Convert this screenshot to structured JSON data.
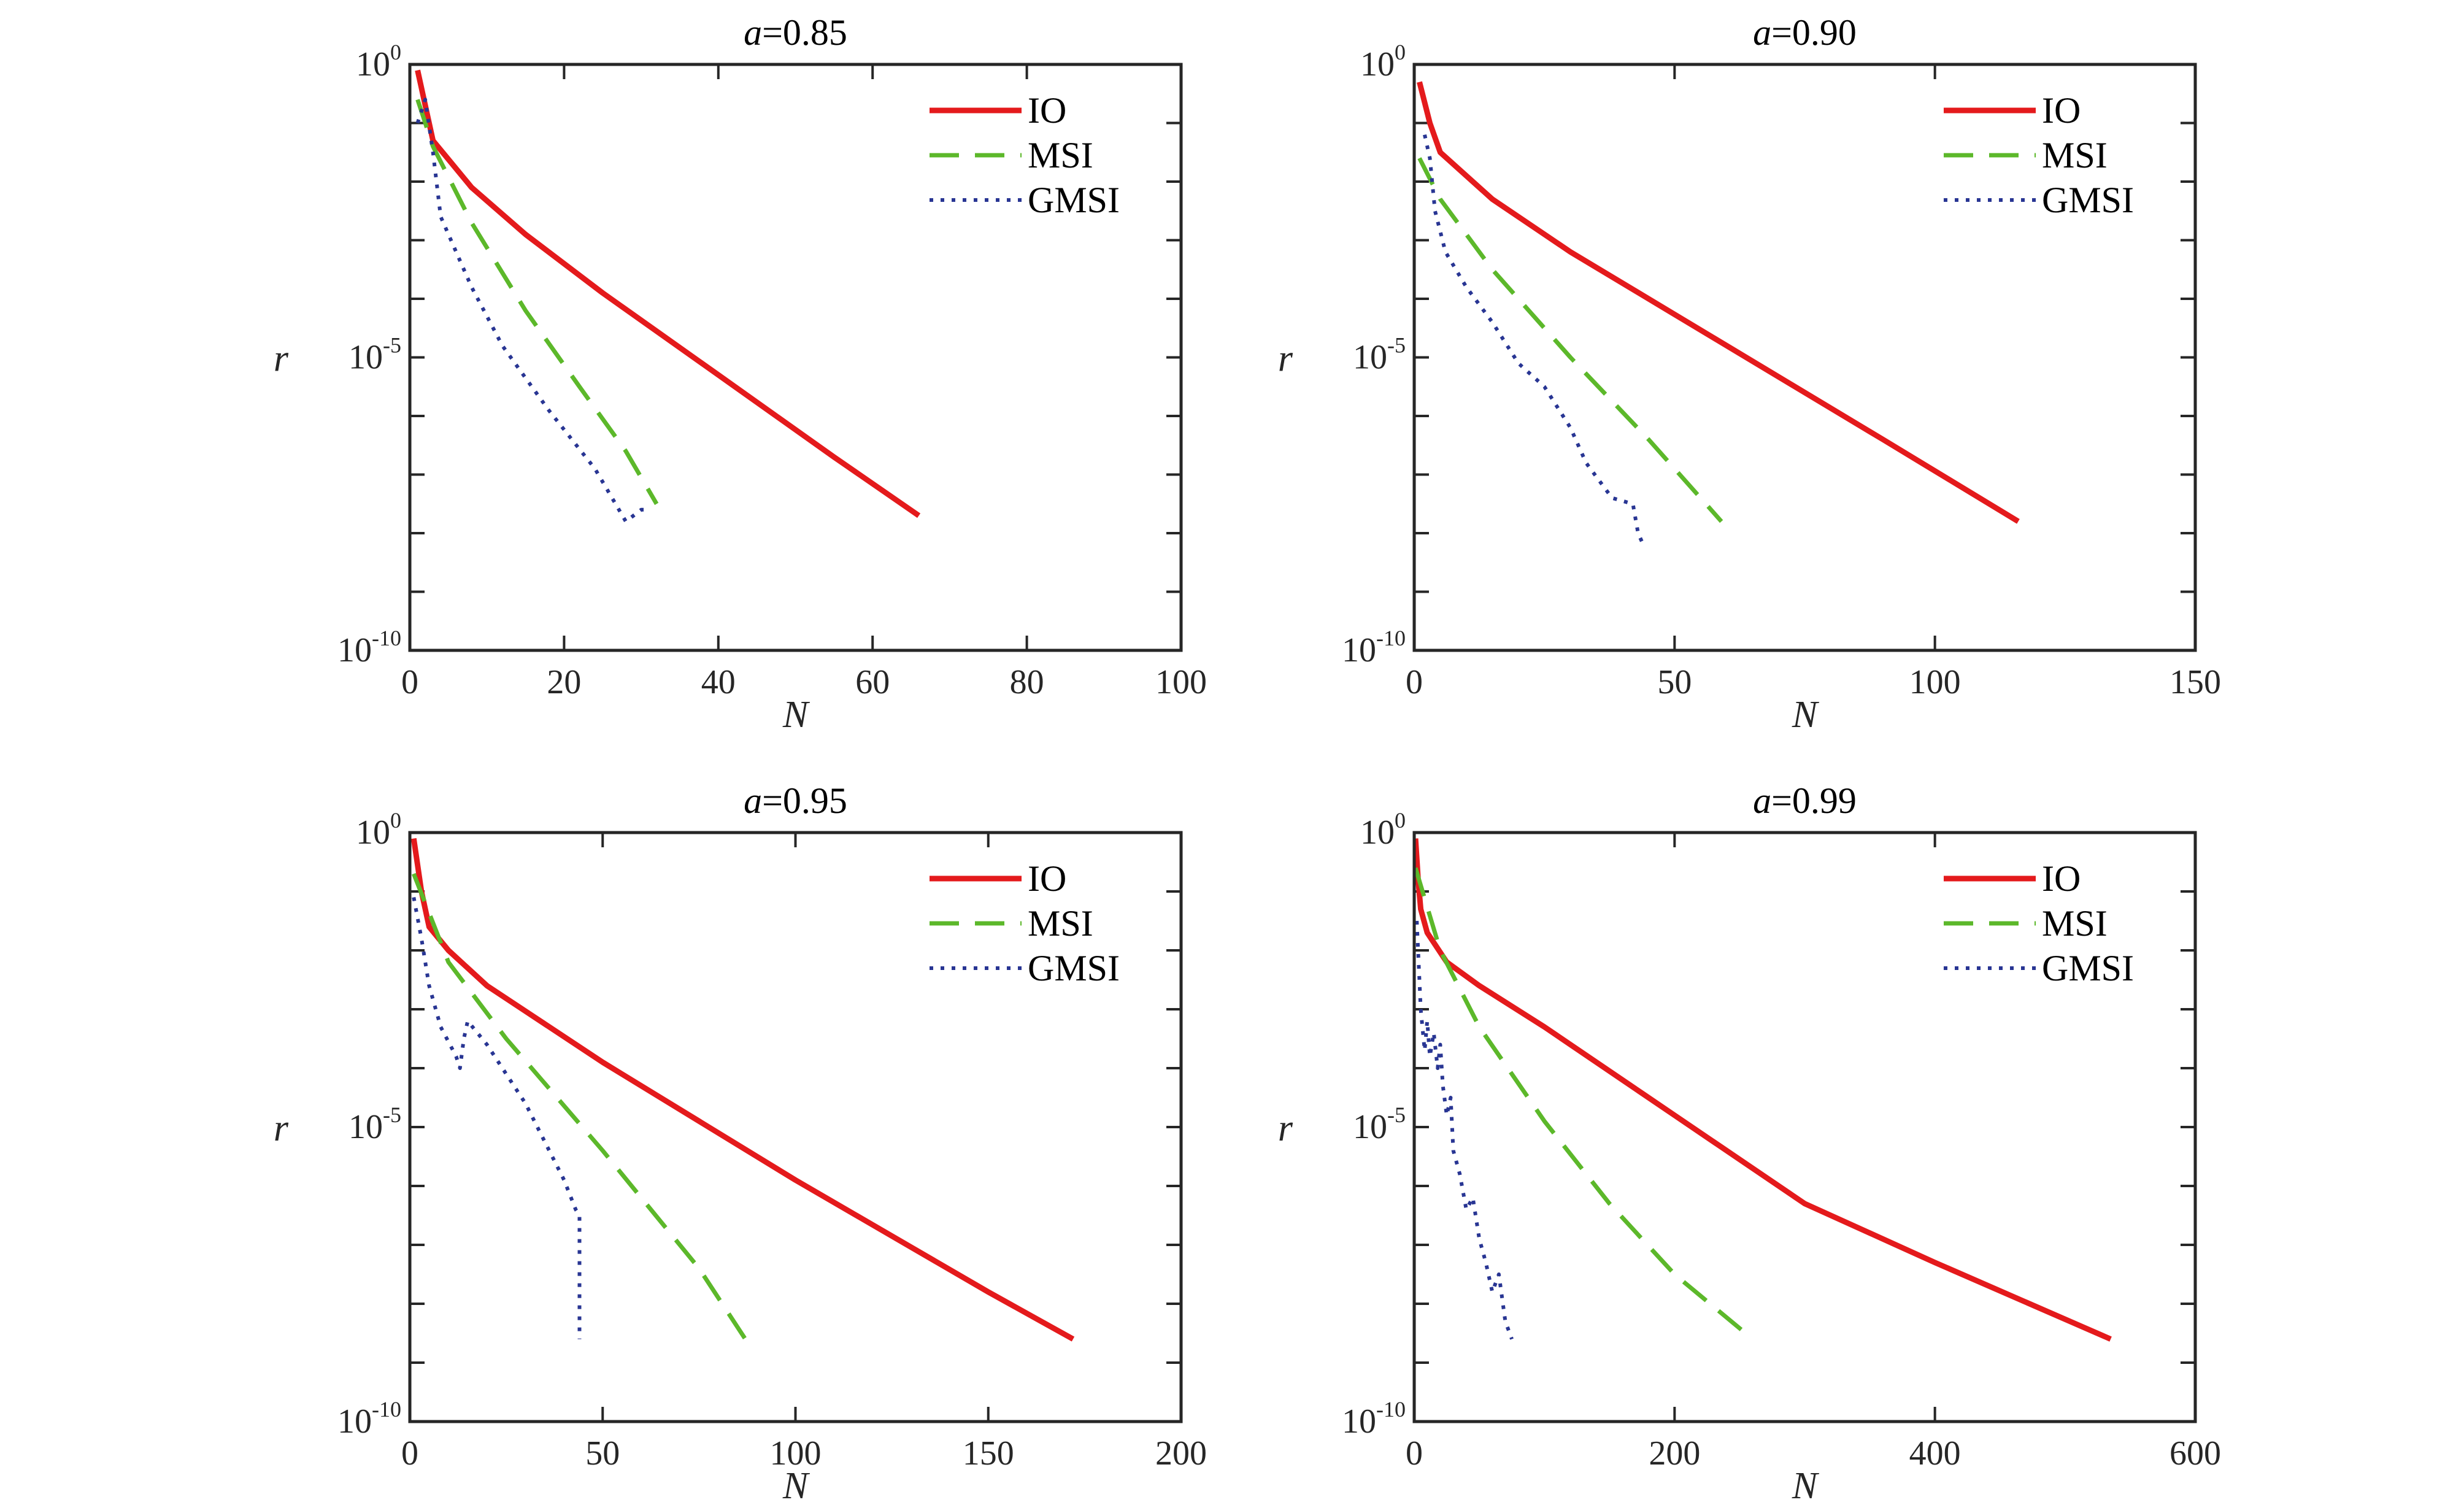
{
  "chart_data": [
    {
      "type": "line",
      "title_var": "a",
      "title_eq": "=",
      "title_val": "0.85",
      "xlabel": "N",
      "ylabel": "r",
      "xlim": [
        0,
        100
      ],
      "xticks": [
        0,
        20,
        40,
        60,
        80,
        100
      ],
      "ylim_exp": [
        -10,
        0
      ],
      "ytick_labels": [
        {
          "base": "10",
          "exp": "0"
        },
        {
          "base": "10",
          "exp": "-5"
        },
        {
          "base": "10",
          "exp": "-10"
        }
      ],
      "yscale": "log",
      "legend_position": "top-right",
      "series": [
        {
          "name": "IO",
          "color": "#e41a1c",
          "dash": "solid",
          "x": [
            1,
            3,
            8,
            15,
            25,
            40,
            55,
            66
          ],
          "y": [
            -0.1,
            -1.3,
            -2.1,
            -2.9,
            -3.9,
            -5.3,
            -6.7,
            -7.7
          ]
        },
        {
          "name": "MSI",
          "color": "#5cb82a",
          "dash": "dashed",
          "x": [
            1,
            3,
            8,
            15,
            22,
            28,
            32
          ],
          "y": [
            -0.6,
            -1.4,
            -2.7,
            -4.2,
            -5.5,
            -6.6,
            -7.5
          ]
        },
        {
          "name": "GMSI",
          "color": "#283593",
          "dash": "dotted",
          "x": [
            1,
            2,
            3,
            4,
            8,
            12,
            18,
            24,
            28,
            30,
            31
          ],
          "y": [
            -1.0,
            -0.6,
            -1.5,
            -2.6,
            -3.8,
            -4.8,
            -5.9,
            -6.9,
            -7.8,
            -7.6,
            -7.6
          ]
        }
      ]
    },
    {
      "type": "line",
      "title_var": "a",
      "title_eq": "=",
      "title_val": "0.90",
      "xlabel": "N",
      "ylabel": "r",
      "xlim": [
        0,
        150
      ],
      "xticks": [
        0,
        50,
        100,
        150
      ],
      "ylim_exp": [
        -10,
        0
      ],
      "ytick_labels": [
        {
          "base": "10",
          "exp": "0"
        },
        {
          "base": "10",
          "exp": "-5"
        },
        {
          "base": "10",
          "exp": "-10"
        }
      ],
      "yscale": "log",
      "legend_position": "top-right",
      "series": [
        {
          "name": "IO",
          "color": "#e41a1c",
          "dash": "solid",
          "x": [
            1,
            3,
            5,
            15,
            30,
            60,
            90,
            116
          ],
          "y": [
            -0.3,
            -1.0,
            -1.5,
            -2.3,
            -3.2,
            -4.8,
            -6.4,
            -7.8
          ]
        },
        {
          "name": "MSI",
          "color": "#5cb82a",
          "dash": "dashed",
          "x": [
            1,
            5,
            15,
            30,
            45,
            59
          ],
          "y": [
            -1.6,
            -2.3,
            -3.5,
            -5.0,
            -6.4,
            -7.8
          ]
        },
        {
          "name": "GMSI",
          "color": "#283593",
          "dash": "dotted",
          "x": [
            2,
            3,
            4,
            6,
            10,
            15,
            20,
            25,
            30,
            33,
            38,
            42,
            43,
            44
          ],
          "y": [
            -1.2,
            -1.6,
            -2.5,
            -3.2,
            -3.8,
            -4.4,
            -5.1,
            -5.5,
            -6.2,
            -6.8,
            -7.4,
            -7.5,
            -8.0,
            -8.2
          ]
        }
      ]
    },
    {
      "type": "line",
      "title_var": "a",
      "title_eq": "=",
      "title_val": "0.95",
      "xlabel": "N",
      "ylabel": "r",
      "xlim": [
        0,
        200
      ],
      "xticks": [
        0,
        50,
        100,
        150,
        200
      ],
      "ylim_exp": [
        -10,
        0
      ],
      "ytick_labels": [
        {
          "base": "10",
          "exp": "0"
        },
        {
          "base": "10",
          "exp": "-5"
        },
        {
          "base": "10",
          "exp": "-10"
        }
      ],
      "yscale": "log",
      "legend_position": "top-right",
      "series": [
        {
          "name": "IO",
          "color": "#e41a1c",
          "dash": "solid",
          "x": [
            1,
            3,
            5,
            10,
            20,
            50,
            100,
            150,
            172
          ],
          "y": [
            -0.1,
            -1.0,
            -1.6,
            -2.0,
            -2.6,
            -3.9,
            -5.9,
            -7.8,
            -8.6
          ]
        },
        {
          "name": "MSI",
          "color": "#5cb82a",
          "dash": "dashed",
          "x": [
            1,
            10,
            25,
            50,
            75,
            87
          ],
          "y": [
            -0.7,
            -2.2,
            -3.5,
            -5.4,
            -7.4,
            -8.6
          ]
        },
        {
          "name": "GMSI",
          "color": "#283593",
          "dash": "dotted",
          "x": [
            1,
            3,
            5,
            8,
            12,
            13,
            14,
            15,
            20,
            30,
            40,
            43,
            44,
            44
          ],
          "y": [
            -1.1,
            -1.8,
            -2.6,
            -3.3,
            -3.8,
            -4.0,
            -3.5,
            -3.2,
            -3.6,
            -4.6,
            -5.9,
            -6.4,
            -6.5,
            -8.6
          ]
        }
      ]
    },
    {
      "type": "line",
      "title_var": "a",
      "title_eq": "=",
      "title_val": "0.99",
      "xlabel": "N",
      "ylabel": "r",
      "xlim": [
        0,
        600
      ],
      "xticks": [
        0,
        200,
        400,
        600
      ],
      "ylim_exp": [
        -10,
        0
      ],
      "ytick_labels": [
        {
          "base": "10",
          "exp": "0"
        },
        {
          "base": "10",
          "exp": "-5"
        },
        {
          "base": "10",
          "exp": "-10"
        }
      ],
      "yscale": "log",
      "legend_position": "top-right",
      "series": [
        {
          "name": "IO",
          "color": "#e41a1c",
          "dash": "solid",
          "x": [
            1,
            3,
            5,
            10,
            25,
            50,
            100,
            200,
            300,
            400,
            535
          ],
          "y": [
            -0.1,
            -0.8,
            -1.3,
            -1.7,
            -2.2,
            -2.6,
            -3.3,
            -4.8,
            -6.3,
            -7.3,
            -8.6
          ]
        },
        {
          "name": "MSI",
          "color": "#5cb82a",
          "dash": "dashed",
          "x": [
            1,
            20,
            50,
            100,
            150,
            200,
            260
          ],
          "y": [
            -0.6,
            -2.0,
            -3.3,
            -4.9,
            -6.3,
            -7.5,
            -8.6
          ]
        },
        {
          "name": "GMSI",
          "color": "#283593",
          "dash": "dotted",
          "x": [
            2,
            5,
            8,
            10,
            12,
            15,
            18,
            20,
            22,
            25,
            28,
            30,
            35,
            40,
            45,
            50,
            55,
            60,
            65,
            70,
            75
          ],
          "y": [
            -1.5,
            -3.0,
            -3.7,
            -3.2,
            -3.8,
            -3.4,
            -4.0,
            -3.6,
            -4.3,
            -4.8,
            -4.5,
            -5.4,
            -5.8,
            -6.4,
            -6.2,
            -6.9,
            -7.3,
            -7.8,
            -7.5,
            -8.3,
            -8.6
          ]
        }
      ]
    }
  ]
}
